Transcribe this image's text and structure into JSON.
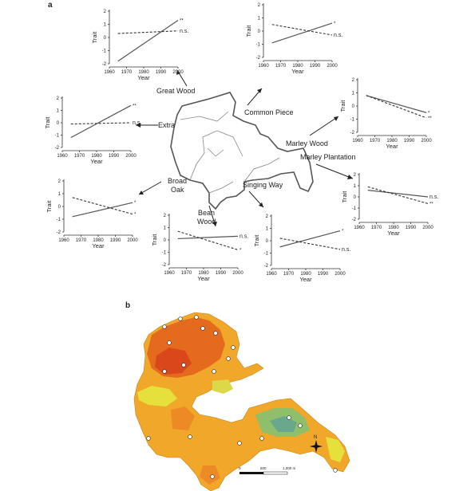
{
  "panel_labels": {
    "a": "a",
    "b": "b"
  },
  "sites": [
    {
      "name": "Great Wood",
      "label_lines": [
        "Great Wood"
      ],
      "solid_sig": "**",
      "dashed_sig": "n.s."
    },
    {
      "name": "Common Piece",
      "label_lines": [
        "Common Piece"
      ],
      "solid_sig": "*",
      "dashed_sig": "n.s."
    },
    {
      "name": "Extra",
      "label_lines": [
        "Extra"
      ],
      "solid_sig": "**",
      "dashed_sig": "n.s."
    },
    {
      "name": "Marley Wood",
      "label_lines": [
        "Marley Wood"
      ],
      "solid_sig": "*",
      "dashed_sig": "**"
    },
    {
      "name": "Marley Plantation",
      "label_lines": [
        "Marley Plantation"
      ],
      "solid_sig": "n.s.",
      "dashed_sig": "**"
    },
    {
      "name": "Broad Oak",
      "label_lines": [
        "Broad",
        "Oak"
      ],
      "solid_sig": "*",
      "dashed_sig": "*"
    },
    {
      "name": "Bean Wood",
      "label_lines": [
        "Bean",
        "Wood"
      ],
      "solid_sig": "n.s.",
      "dashed_sig": "*"
    },
    {
      "name": "Singing Way",
      "label_lines": [
        "Singing Way"
      ],
      "solid_sig": "*",
      "dashed_sig": "n.s."
    }
  ],
  "map_b": {
    "compass_label": "N",
    "scale_labels": [
      "0",
      "500",
      "1,000 m"
    ]
  },
  "chart_data": [
    {
      "type": "line",
      "site": "Great Wood",
      "xlabel": "Year",
      "ylabel": "Trait",
      "xlim": [
        1960,
        2000
      ],
      "ylim": [
        -2,
        2
      ],
      "x_ticks": [
        1960,
        1970,
        1980,
        1990,
        2000
      ],
      "y_ticks": [
        2,
        1,
        0,
        -1,
        -2
      ],
      "series": [
        {
          "style": "solid",
          "x": [
            1965,
            2000
          ],
          "y": [
            -1.8,
            1.3
          ]
        },
        {
          "style": "dashed",
          "x": [
            1965,
            2000
          ],
          "y": [
            0.3,
            0.5
          ]
        }
      ]
    },
    {
      "type": "line",
      "site": "Common Piece",
      "xlabel": "Year",
      "ylabel": "Trait",
      "xlim": [
        1960,
        2000
      ],
      "ylim": [
        -2,
        2
      ],
      "x_ticks": [
        1960,
        1970,
        1980,
        1990,
        2000
      ],
      "y_ticks": [
        2,
        1,
        0,
        -1,
        -2
      ],
      "series": [
        {
          "style": "solid",
          "x": [
            1965,
            2000
          ],
          "y": [
            -0.9,
            0.6
          ]
        },
        {
          "style": "dashed",
          "x": [
            1965,
            2000
          ],
          "y": [
            0.5,
            -0.3
          ]
        }
      ]
    },
    {
      "type": "line",
      "site": "Extra",
      "xlabel": "Year",
      "ylabel": "Trait",
      "xlim": [
        1960,
        2000
      ],
      "ylim": [
        -2,
        2
      ],
      "x_ticks": [
        1960,
        1970,
        1980,
        1990,
        2000
      ],
      "y_ticks": [
        2,
        1,
        0,
        -1,
        -2
      ],
      "series": [
        {
          "style": "solid",
          "x": [
            1965,
            2000
          ],
          "y": [
            -1.2,
            1.4
          ]
        },
        {
          "style": "dashed",
          "x": [
            1965,
            2000
          ],
          "y": [
            -0.1,
            0.0
          ]
        }
      ]
    },
    {
      "type": "line",
      "site": "Marley Wood",
      "xlabel": "Year",
      "ylabel": "Trait",
      "xlim": [
        1960,
        2000
      ],
      "ylim": [
        -2,
        2
      ],
      "x_ticks": [
        1960,
        1970,
        1980,
        1990,
        2000
      ],
      "y_ticks": [
        2,
        1,
        0,
        -1,
        -2
      ],
      "series": [
        {
          "style": "solid",
          "x": [
            1965,
            2000
          ],
          "y": [
            0.8,
            -0.5
          ]
        },
        {
          "style": "dashed",
          "x": [
            1965,
            2000
          ],
          "y": [
            0.8,
            -0.9
          ]
        }
      ]
    },
    {
      "type": "line",
      "site": "Marley Plantation",
      "xlabel": "Year",
      "ylabel": "Trait",
      "xlim": [
        1960,
        2000
      ],
      "ylim": [
        -2,
        2
      ],
      "x_ticks": [
        1960,
        1970,
        1980,
        1990,
        2000
      ],
      "y_ticks": [
        2,
        1,
        0,
        -1,
        -2
      ],
      "series": [
        {
          "style": "solid",
          "x": [
            1965,
            2000
          ],
          "y": [
            0.6,
            0.0
          ]
        },
        {
          "style": "dashed",
          "x": [
            1965,
            2000
          ],
          "y": [
            0.9,
            -0.6
          ]
        }
      ]
    },
    {
      "type": "line",
      "site": "Broad Oak",
      "xlabel": "Year",
      "ylabel": "Trait",
      "xlim": [
        1960,
        2000
      ],
      "ylim": [
        -2,
        2
      ],
      "x_ticks": [
        1960,
        1970,
        1980,
        1990,
        2000
      ],
      "y_ticks": [
        2,
        1,
        0,
        -1,
        -2
      ],
      "series": [
        {
          "style": "solid",
          "x": [
            1965,
            2000
          ],
          "y": [
            -0.8,
            0.3
          ]
        },
        {
          "style": "dashed",
          "x": [
            1965,
            2000
          ],
          "y": [
            0.7,
            -0.6
          ]
        }
      ]
    },
    {
      "type": "line",
      "site": "Bean Wood",
      "xlabel": "Year",
      "ylabel": "Trait",
      "xlim": [
        1960,
        2000
      ],
      "ylim": [
        -2,
        2
      ],
      "x_ticks": [
        1960,
        1970,
        1980,
        1990,
        2000
      ],
      "y_ticks": [
        2,
        1,
        0,
        -1,
        -2
      ],
      "series": [
        {
          "style": "solid",
          "x": [
            1965,
            2000
          ],
          "y": [
            0.1,
            0.3
          ]
        },
        {
          "style": "dashed",
          "x": [
            1965,
            2000
          ],
          "y": [
            0.7,
            -0.8
          ]
        }
      ]
    },
    {
      "type": "line",
      "site": "Singing Way",
      "xlabel": "Year",
      "ylabel": "Trait",
      "xlim": [
        1960,
        2000
      ],
      "ylim": [
        -2,
        2
      ],
      "x_ticks": [
        1960,
        1970,
        1980,
        1990,
        2000
      ],
      "y_ticks": [
        2,
        1,
        0,
        -1,
        -2
      ],
      "series": [
        {
          "style": "solid",
          "x": [
            1965,
            2000
          ],
          "y": [
            -0.5,
            0.8
          ]
        },
        {
          "style": "dashed",
          "x": [
            1965,
            2000
          ],
          "y": [
            0.2,
            -0.7
          ]
        }
      ]
    }
  ]
}
